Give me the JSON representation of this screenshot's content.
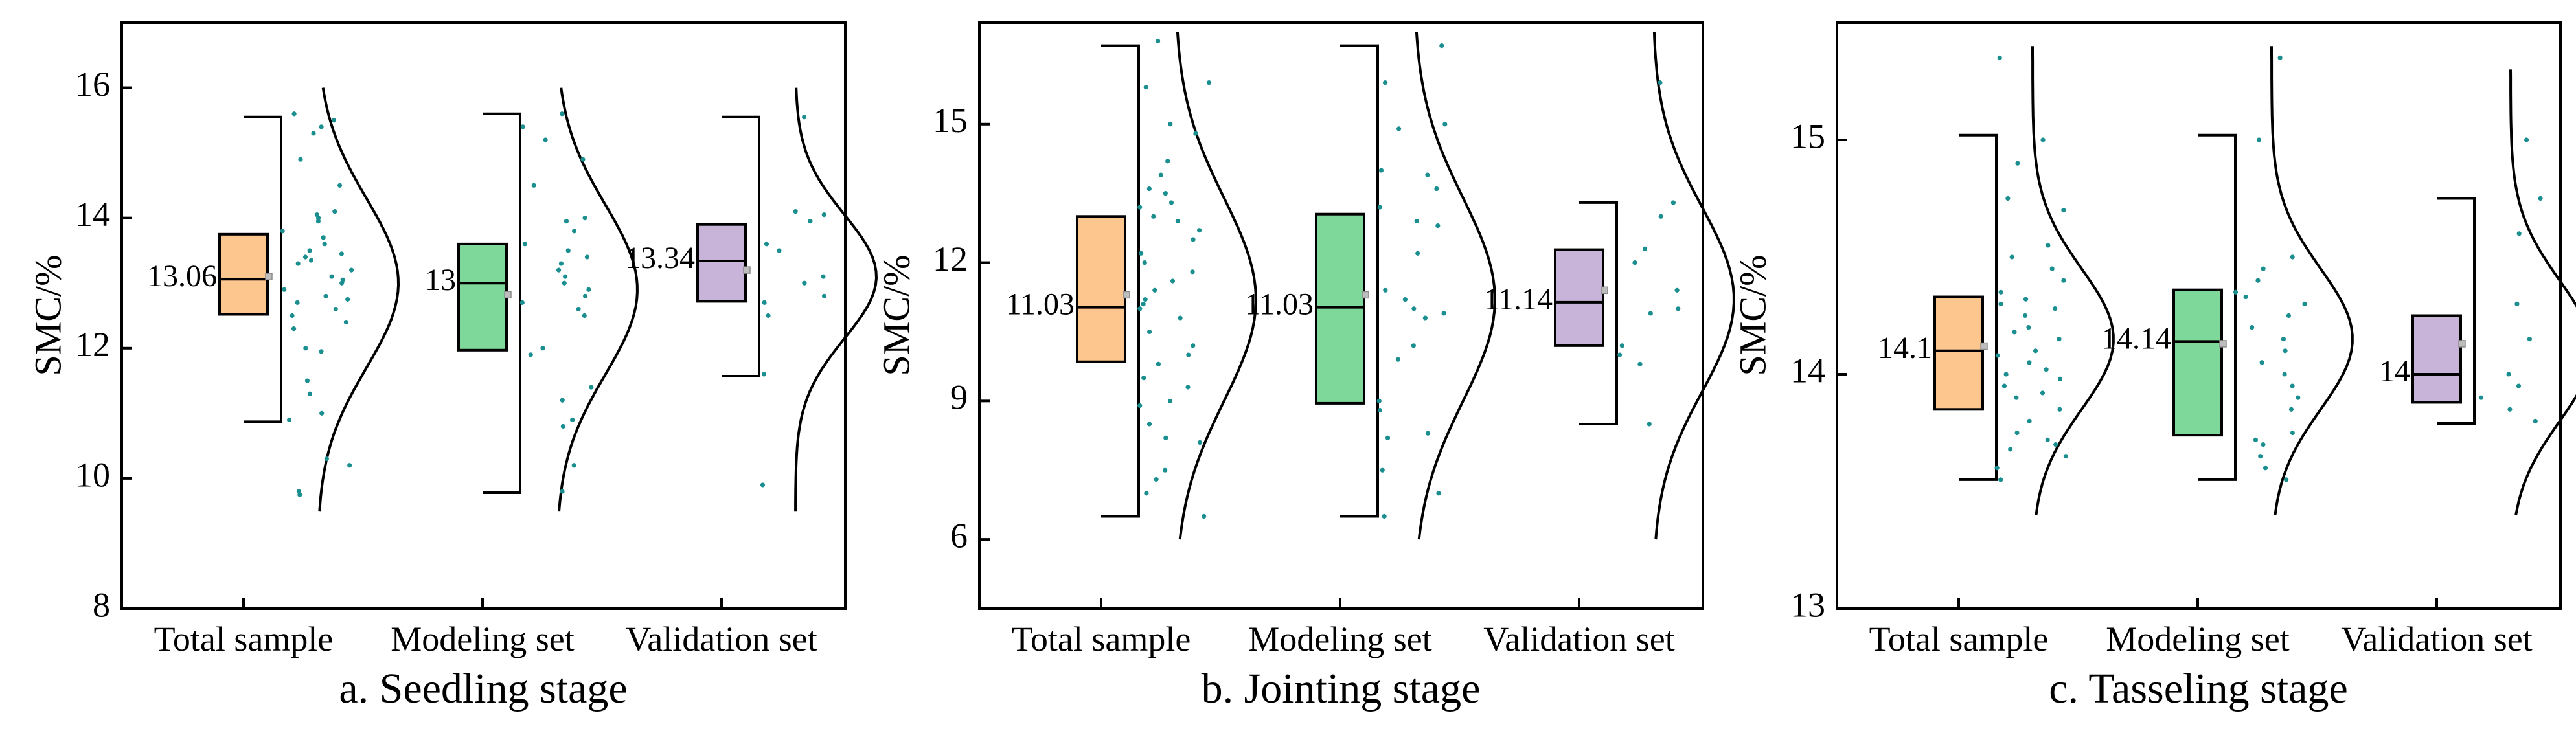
{
  "figure": {
    "background": "#ffffff"
  },
  "chart_data": [
    {
      "type": "box",
      "title": "a. Seedling stage",
      "xlabel": "",
      "ylabel": "SMC/%",
      "ylim": [
        8,
        17
      ],
      "yticks": [
        8,
        10,
        12,
        14,
        16
      ],
      "categories": [
        "Total sample",
        "Modeling set",
        "Validation set"
      ],
      "series": [
        {
          "name": "Total sample",
          "color": "#fdc68f",
          "min": 10.87,
          "q1": 12.52,
          "median": 13.06,
          "q3": 13.75,
          "max": 15.55,
          "mean": 13.1,
          "median_label": "13.06",
          "density_range": [
            9.5,
            16.0
          ],
          "density_sd": 1.3,
          "density_peak": 13.0,
          "points": [
            15.6,
            15.5,
            15.4,
            15.3,
            14.9,
            14.5,
            14.1,
            14.05,
            14.0,
            13.95,
            13.8,
            13.7,
            13.6,
            13.5,
            13.45,
            13.4,
            13.35,
            13.3,
            13.2,
            13.1,
            13.05,
            13.0,
            12.9,
            12.8,
            12.75,
            12.7,
            12.6,
            12.5,
            12.4,
            12.3,
            12.0,
            11.95,
            11.5,
            11.3,
            11.0,
            10.9,
            10.3,
            10.2,
            9.8,
            9.75
          ]
        },
        {
          "name": "Modeling set",
          "color": "#7dd89a",
          "min": 9.78,
          "q1": 11.97,
          "median": 13.0,
          "q3": 13.6,
          "max": 15.6,
          "mean": 12.82,
          "median_label": "13",
          "density_range": [
            9.5,
            16.0
          ],
          "density_sd": 1.3,
          "density_peak": 12.9,
          "points": [
            15.6,
            15.4,
            15.2,
            14.9,
            14.5,
            14.0,
            13.95,
            13.8,
            13.6,
            13.5,
            13.4,
            13.3,
            13.2,
            13.1,
            13.0,
            12.9,
            12.8,
            12.7,
            12.6,
            12.5,
            12.0,
            11.9,
            11.4,
            11.2,
            10.9,
            10.8,
            10.2,
            9.8
          ]
        },
        {
          "name": "Validation set",
          "color": "#c8b4d8",
          "min": 11.57,
          "q1": 12.72,
          "median": 13.34,
          "q3": 13.9,
          "max": 15.55,
          "mean": 13.2,
          "median_label": "13.34",
          "density_range": [
            9.5,
            16.0
          ],
          "density_sd": 0.95,
          "density_peak": 13.1,
          "points": [
            15.55,
            14.1,
            14.05,
            13.95,
            13.6,
            13.5,
            13.1,
            13.0,
            12.8,
            12.7,
            12.5,
            11.6,
            9.9
          ]
        }
      ]
    },
    {
      "type": "box",
      "title": "b. Jointing stage",
      "xlabel": "",
      "ylabel": "SMC/%",
      "ylim": [
        4.5,
        17.2
      ],
      "yticks": [
        6,
        9,
        12,
        15
      ],
      "categories": [
        "Total sample",
        "Modeling set",
        "Validation set"
      ],
      "series": [
        {
          "name": "Total sample",
          "color": "#fdc68f",
          "min": 6.5,
          "q1": 9.85,
          "median": 11.03,
          "q3": 13.0,
          "max": 16.7,
          "mean": 11.3,
          "median_label": "11.03",
          "density_range": [
            6.0,
            17.0
          ],
          "density_sd": 2.2,
          "density_peak": 11.2,
          "points": [
            16.8,
            15.9,
            15.8,
            15.0,
            14.8,
            14.2,
            13.9,
            13.6,
            13.5,
            13.3,
            13.2,
            13.0,
            12.9,
            12.7,
            12.5,
            12.2,
            12.0,
            11.8,
            11.6,
            11.4,
            11.2,
            11.1,
            11.0,
            10.8,
            10.5,
            10.2,
            10.0,
            9.8,
            9.5,
            9.3,
            9.0,
            8.9,
            8.5,
            8.2,
            8.1,
            7.5,
            7.3,
            7.0,
            6.5
          ]
        },
        {
          "name": "Modeling set",
          "color": "#7dd89a",
          "min": 6.5,
          "q1": 8.95,
          "median": 11.03,
          "q3": 13.05,
          "max": 16.7,
          "mean": 11.3,
          "median_label": "11.03",
          "density_range": [
            6.0,
            17.0
          ],
          "density_sd": 2.2,
          "density_peak": 11.2,
          "points": [
            16.7,
            15.9,
            15.0,
            14.9,
            14.0,
            13.9,
            13.6,
            13.2,
            12.9,
            12.8,
            12.2,
            11.4,
            11.2,
            11.0,
            10.9,
            10.8,
            10.2,
            9.9,
            9.0,
            8.8,
            8.3,
            8.2,
            7.5,
            7.0,
            6.5
          ]
        },
        {
          "name": "Validation set",
          "color": "#c8b4d8",
          "min": 8.5,
          "q1": 10.2,
          "median": 11.14,
          "q3": 12.28,
          "max": 13.3,
          "mean": 11.4,
          "median_label": "11.14",
          "density_range": [
            6.0,
            17.0
          ],
          "density_sd": 2.0,
          "density_peak": 11.2,
          "points": [
            15.9,
            13.3,
            13.0,
            12.3,
            12.0,
            11.4,
            11.0,
            10.9,
            10.2,
            10.0,
            9.8,
            8.5
          ]
        }
      ]
    },
    {
      "type": "box",
      "title": "c. Tasseling stage",
      "xlabel": "",
      "ylabel": "SMC/%",
      "ylim": [
        13,
        15.5
      ],
      "yticks": [
        13,
        14,
        15
      ],
      "categories": [
        "Total sample",
        "Modeling set",
        "Validation set"
      ],
      "series": [
        {
          "name": "Total sample",
          "color": "#fdc68f",
          "min": 13.55,
          "q1": 13.85,
          "median": 14.1,
          "q3": 14.33,
          "max": 15.02,
          "mean": 14.12,
          "median_label": "14.1",
          "density_range": [
            13.4,
            15.4
          ],
          "density_sd": 0.3,
          "density_peak": 14.15,
          "points": [
            15.35,
            15.0,
            14.9,
            14.75,
            14.7,
            14.55,
            14.5,
            14.45,
            14.4,
            14.35,
            14.32,
            14.3,
            14.28,
            14.25,
            14.2,
            14.18,
            14.15,
            14.1,
            14.08,
            14.05,
            14.02,
            14.0,
            13.98,
            13.95,
            13.92,
            13.9,
            13.85,
            13.8,
            13.75,
            13.72,
            13.7,
            13.68,
            13.65,
            13.6,
            13.55
          ]
        },
        {
          "name": "Modeling set",
          "color": "#7dd89a",
          "min": 13.55,
          "q1": 13.74,
          "median": 14.14,
          "q3": 14.36,
          "max": 15.02,
          "mean": 14.13,
          "median_label": "14.14",
          "density_range": [
            13.4,
            15.4
          ],
          "density_sd": 0.3,
          "density_peak": 14.15,
          "points": [
            15.35,
            15.0,
            14.5,
            14.45,
            14.4,
            14.35,
            14.33,
            14.3,
            14.25,
            14.2,
            14.15,
            14.1,
            14.05,
            14.0,
            13.95,
            13.9,
            13.85,
            13.75,
            13.72,
            13.7,
            13.65,
            13.6,
            13.55
          ]
        },
        {
          "name": "Validation set",
          "color": "#c8b4d8",
          "min": 13.79,
          "q1": 13.88,
          "median": 14.0,
          "q3": 14.25,
          "max": 14.75,
          "mean": 14.13,
          "median_label": "14",
          "density_range": [
            13.4,
            15.3
          ],
          "density_sd": 0.3,
          "density_peak": 14.1,
          "points": [
            15.0,
            14.75,
            14.6,
            14.3,
            14.15,
            14.0,
            13.95,
            13.9,
            13.85,
            13.8
          ]
        }
      ]
    }
  ],
  "styles": {
    "dot_color": "#1b8f8f",
    "mean_marker_color": "#bdbdbd"
  }
}
